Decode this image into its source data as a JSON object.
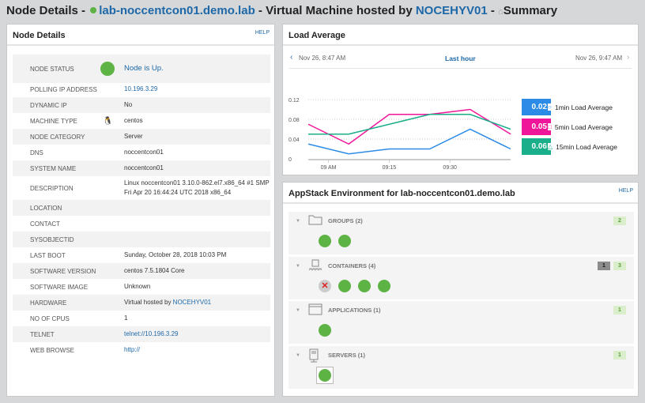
{
  "title": {
    "prefix": "Node Details - ",
    "node": "lab-noccentcon01.demo.lab",
    "mid": " - Virtual Machine hosted by ",
    "host": "NOCEHYV01",
    "sep": " - ",
    "page": "Summary"
  },
  "node_details": {
    "title": "Node Details",
    "help": "HELP",
    "rows": [
      {
        "k": "NODE STATUS",
        "v": "Node is Up.",
        "link": true,
        "icon": "status-up"
      },
      {
        "k": "POLLING IP ADDRESS",
        "v": "10.196.3.29",
        "link": true
      },
      {
        "k": "DYNAMIC IP",
        "v": "No"
      },
      {
        "k": "MACHINE TYPE",
        "v": "centos",
        "icon": "linux-penguin"
      },
      {
        "k": "NODE CATEGORY",
        "v": "Server"
      },
      {
        "k": "DNS",
        "v": "noccentcon01"
      },
      {
        "k": "SYSTEM NAME",
        "v": "noccentcon01"
      },
      {
        "k": "DESCRIPTION",
        "v": "Linux noccentcon01 3.10.0-862.el7.x86_64 #1 SMP",
        "v2": "Fri Apr 20 16:44:24 UTC 2018 x86_64"
      },
      {
        "k": "LOCATION",
        "v": ""
      },
      {
        "k": "CONTACT",
        "v": ""
      },
      {
        "k": "SYSOBJECTID",
        "v": ""
      },
      {
        "k": "LAST BOOT",
        "v": "Sunday, October 28, 2018 10:03 PM"
      },
      {
        "k": "SOFTWARE VERSION",
        "v": "centos 7.5.1804 Core"
      },
      {
        "k": "SOFTWARE IMAGE",
        "v": "Unknown"
      },
      {
        "k": "HARDWARE",
        "v": "Virtual hosted by ",
        "vlink": "NOCEHYV01"
      },
      {
        "k": "NO OF CPUS",
        "v": "1"
      },
      {
        "k": "TELNET",
        "v": "telnet://10.196.3.29",
        "link": true
      },
      {
        "k": "WEB BROWSE",
        "v": "http://",
        "link": true
      }
    ]
  },
  "load_average": {
    "title": "Load Average",
    "range_start": "Nov 26, 8:47 AM",
    "range_label": "Last hour",
    "range_end": "Nov 26, 9:47 AM"
  },
  "chart_data": {
    "type": "line",
    "x": [
      "08:55",
      "09:05",
      "09:15",
      "09:25",
      "09:35",
      "09:45"
    ],
    "xticks": [
      {
        "t": "09:00",
        "label": "09 AM"
      },
      {
        "t": "09:15",
        "label": "09:15"
      },
      {
        "t": "09:30",
        "label": "09:30"
      }
    ],
    "yticks": [
      "0",
      "0.04",
      "0.08",
      "0.12"
    ],
    "ylim": [
      0,
      0.12
    ],
    "grid": true,
    "legend": "right",
    "series": [
      {
        "name": "1min Load Average",
        "current": "0.02",
        "color": "#2b8be6",
        "marker": "circle",
        "values": [
          0.03,
          0.01,
          0.02,
          0.02,
          0.06,
          0.02
        ]
      },
      {
        "name": "5min Load Average",
        "current": "0.05",
        "color": "#f0169a",
        "marker": "square",
        "values": [
          0.07,
          0.03,
          0.09,
          0.09,
          0.1,
          0.05
        ]
      },
      {
        "name": "15min Load Average",
        "current": "0.06",
        "color": "#1aae8a",
        "marker": "triangle",
        "values": [
          0.05,
          0.05,
          0.07,
          0.09,
          0.09,
          0.06
        ]
      }
    ]
  },
  "appstack": {
    "title": "AppStack Environment for lab-noccentcon01.demo.lab",
    "help": "HELP",
    "sections": [
      {
        "label": "GROUPS (2)",
        "icon": "folder",
        "badges": [
          {
            "v": "2",
            "c": "green"
          }
        ],
        "items": [
          "up",
          "up"
        ]
      },
      {
        "label": "CONTAINERS (4)",
        "icon": "container",
        "badges": [
          {
            "v": "1",
            "c": "gray"
          },
          {
            "v": "3",
            "c": "green"
          }
        ],
        "items": [
          "down",
          "up",
          "up",
          "up"
        ]
      },
      {
        "label": "APPLICATIONS (1)",
        "icon": "application-window",
        "badges": [
          {
            "v": "1",
            "c": "green"
          }
        ],
        "items": [
          "up"
        ]
      },
      {
        "label": "SERVERS (1)",
        "icon": "server",
        "badges": [
          {
            "v": "1",
            "c": "green"
          }
        ],
        "items": [
          "up-selected"
        ]
      }
    ]
  }
}
